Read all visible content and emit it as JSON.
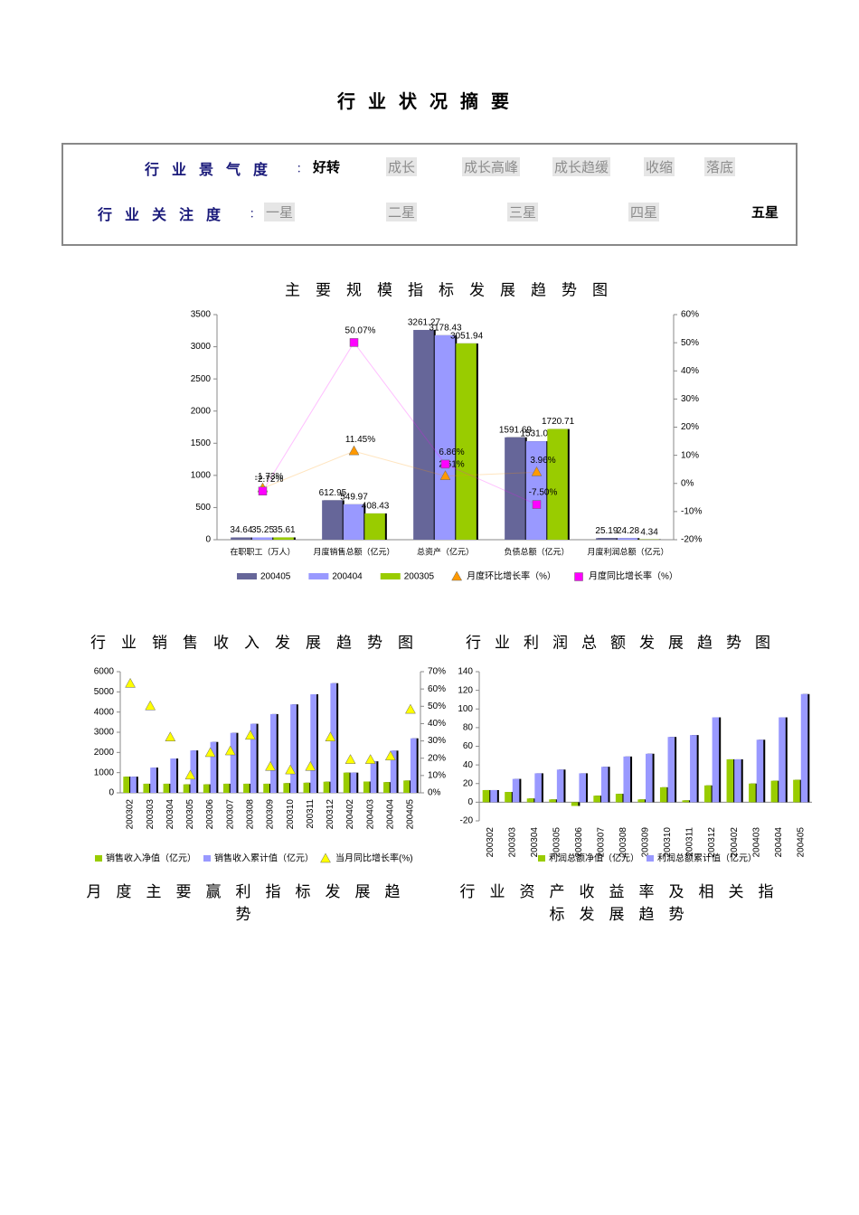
{
  "header": {
    "title": "行业状况摘要"
  },
  "summary": {
    "rows": [
      {
        "label": "行业景气度",
        "separator": "：",
        "options": [
          "好转",
          "成长",
          "成长高峰",
          "成长趋缓",
          "收缩",
          "落底"
        ],
        "selected": 0
      },
      {
        "label": "行业关注度",
        "separator": "：",
        "options": [
          "一星",
          "二星",
          "三星",
          "四星",
          "五星"
        ],
        "selected": 4
      }
    ]
  },
  "captions": [
    "月度主要赢利指标发展趋势",
    "行业资产收益率及相关指标发展趋势"
  ],
  "chart_data": [
    {
      "type": "bar",
      "title": "主要规模指标发展趋势图",
      "categories": [
        "在职职工（万人）",
        "月度销售总额（亿元）",
        "总资产（亿元）",
        "负债总额（亿元）",
        "月度利润总额（亿元）"
      ],
      "data_labels": true,
      "series": [
        {
          "name": "200405",
          "color": "#666699",
          "values": [
            34.64,
            612.95,
            3261.27,
            1591.69,
            25.19
          ]
        },
        {
          "name": "200404",
          "color": "#9999ff",
          "values": [
            35.25,
            549.97,
            3178.43,
            1531.03,
            24.28
          ]
        },
        {
          "name": "200305",
          "color": "#99cc00",
          "values": [
            35.61,
            408.43,
            3051.94,
            1720.71,
            4.34
          ]
        },
        {
          "name": "月度环比增长率（%）",
          "color": "#ff9900",
          "axis": "y2",
          "marker": "triangle",
          "line": true,
          "values": [
            -1.73,
            11.45,
            2.61,
            3.96,
            null
          ],
          "value_labels": [
            "-1.73%",
            "11.45%",
            "2.61%",
            "3.96%",
            null
          ]
        },
        {
          "name": "月度同比增长率（%）",
          "color": "#ff00ff",
          "axis": "y2",
          "marker": "square",
          "line": true,
          "values": [
            -2.72,
            50.07,
            6.86,
            -7.5,
            null
          ],
          "value_labels": [
            "-2.72%",
            "50.07%",
            "6.86%",
            "-7.50%",
            null
          ]
        }
      ],
      "ylim": [
        0,
        3500
      ],
      "yticks": [
        0,
        500,
        1000,
        1500,
        2000,
        2500,
        3000,
        3500
      ],
      "y2lim": [
        -20,
        60
      ],
      "y2ticks": [
        {
          "value": -20,
          "label": "-20%"
        },
        {
          "value": -10,
          "label": "-10%"
        },
        {
          "value": 0,
          "label": "0%"
        },
        {
          "value": 10,
          "label": "10%"
        },
        {
          "value": 20,
          "label": "20%"
        },
        {
          "value": 30,
          "label": "30%"
        },
        {
          "value": 40,
          "label": "40%"
        },
        {
          "value": 50,
          "label": "50%"
        },
        {
          "value": 60,
          "label": "60%"
        }
      ]
    },
    {
      "type": "bar",
      "title": "行业销售收入发展趋势图",
      "categories": [
        "200302",
        "200303",
        "200304",
        "200305",
        "200306",
        "200307",
        "200308",
        "200309",
        "200310",
        "200311",
        "200312",
        "200402",
        "200403",
        "200404",
        "200405"
      ],
      "series": [
        {
          "name": "销售收入净值（亿元）",
          "color": "#99cc00",
          "values": [
            800,
            450,
            450,
            420,
            420,
            450,
            450,
            450,
            480,
            500,
            550,
            1000,
            560,
            530,
            610
          ]
        },
        {
          "name": "销售收入累计值（亿元）",
          "color": "#9999ff",
          "values": [
            800,
            1250,
            1700,
            2100,
            2520,
            2970,
            3420,
            3900,
            4380,
            4880,
            5430,
            1000,
            1560,
            2090,
            2700
          ]
        },
        {
          "name": "当月同比增长率(%)",
          "color": "#ffff00",
          "axis": "y2",
          "marker": "triangle",
          "values": [
            63,
            50,
            32,
            10,
            23,
            24,
            33,
            15,
            13,
            15,
            32,
            19,
            19,
            21,
            48
          ]
        }
      ],
      "ylim": [
        0,
        6000
      ],
      "yticks": [
        0,
        1000,
        2000,
        3000,
        4000,
        5000,
        6000
      ],
      "y2lim": [
        0,
        70
      ],
      "y2ticks": [
        {
          "value": 0,
          "label": "0%"
        },
        {
          "value": 10,
          "label": "10%"
        },
        {
          "value": 20,
          "label": "20%"
        },
        {
          "value": 30,
          "label": "30%"
        },
        {
          "value": 40,
          "label": "40%"
        },
        {
          "value": 50,
          "label": "50%"
        },
        {
          "value": 60,
          "label": "60%"
        },
        {
          "value": 70,
          "label": "70%"
        }
      ]
    },
    {
      "type": "bar",
      "title": "行业利润总额发展趋势图",
      "categories": [
        "200302",
        "200303",
        "200304",
        "200305",
        "200306",
        "200307",
        "200308",
        "200309",
        "200310",
        "200311",
        "200312",
        "200402",
        "200403",
        "200404",
        "200405"
      ],
      "series": [
        {
          "name": "利润总额净值（亿元）",
          "color": "#99cc00",
          "values": [
            13,
            11,
            4,
            3,
            -4,
            7,
            9,
            3,
            16,
            2,
            18,
            46,
            20,
            23,
            24
          ]
        },
        {
          "name": "利润总额累计值（亿元）",
          "color": "#9999ff",
          "values": [
            13,
            25,
            31,
            35,
            31,
            38,
            49,
            52,
            70,
            72,
            91,
            46,
            67,
            91,
            116
          ]
        }
      ],
      "ylim": [
        -20,
        140
      ],
      "yticks": [
        -20,
        0,
        20,
        40,
        60,
        80,
        100,
        120,
        140
      ]
    }
  ]
}
